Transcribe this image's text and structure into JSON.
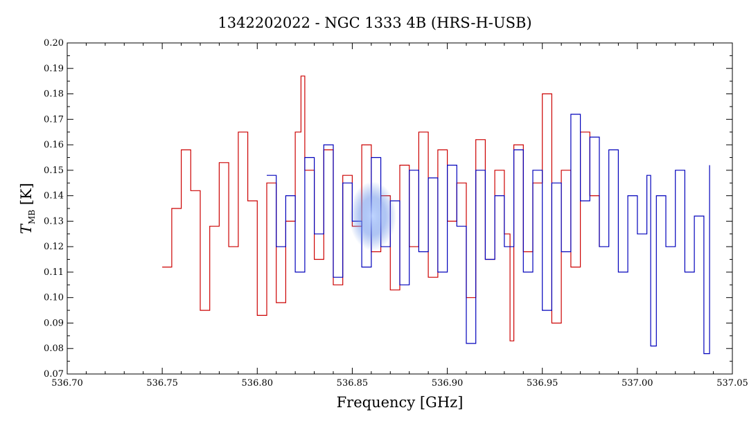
{
  "chart_data": {
    "type": "line",
    "title": "1342202022 - NGC 1333 4B (HRS-H-USB)",
    "xlabel": "Frequency [GHz]",
    "ylabel": "T",
    "ylabel_sub": "MB",
    "ylabel_unit": " [K]",
    "xlim": [
      536.7,
      537.05
    ],
    "ylim": [
      0.07,
      0.2
    ],
    "x_ticks": [
      536.7,
      536.75,
      536.8,
      536.85,
      536.9,
      536.95,
      537.0,
      537.05
    ],
    "x_tick_labels": [
      "536.70",
      "536.75",
      "536.80",
      "536.85",
      "536.90",
      "536.95",
      "537.00",
      "537.05"
    ],
    "y_ticks": [
      0.07,
      0.08,
      0.09,
      0.1,
      0.11,
      0.12,
      0.13,
      0.14,
      0.15,
      0.16,
      0.17,
      0.18,
      0.19,
      0.2
    ],
    "y_tick_labels": [
      "0.07",
      "0.08",
      "0.09",
      "0.10",
      "0.11",
      "0.12",
      "0.13",
      "0.14",
      "0.15",
      "0.16",
      "0.17",
      "0.18",
      "0.19",
      "0.20"
    ],
    "grid": false,
    "legend": "none",
    "series": [
      {
        "color": "#cc0000",
        "style": "steps",
        "x": [
          536.75,
          536.755,
          536.76,
          536.765,
          536.77,
          536.775,
          536.78,
          536.785,
          536.79,
          536.795,
          536.8,
          536.805,
          536.81,
          536.815,
          536.82,
          536.823,
          536.825,
          536.83,
          536.835,
          536.84,
          536.845,
          536.85,
          536.855,
          536.86,
          536.865,
          536.87,
          536.875,
          536.88,
          536.885,
          536.89,
          536.895,
          536.9,
          536.905,
          536.91,
          536.915,
          536.92,
          536.925,
          536.93,
          536.933,
          536.935,
          536.94,
          536.945,
          536.95,
          536.955,
          536.96,
          536.965,
          536.97,
          536.975,
          536.98
        ],
        "y": [
          0.112,
          0.135,
          0.158,
          0.142,
          0.095,
          0.128,
          0.153,
          0.12,
          0.165,
          0.138,
          0.093,
          0.145,
          0.098,
          0.13,
          0.165,
          0.187,
          0.15,
          0.115,
          0.158,
          0.105,
          0.148,
          0.128,
          0.16,
          0.118,
          0.14,
          0.103,
          0.152,
          0.12,
          0.165,
          0.108,
          0.158,
          0.13,
          0.145,
          0.1,
          0.162,
          0.115,
          0.15,
          0.125,
          0.083,
          0.16,
          0.118,
          0.145,
          0.18,
          0.09,
          0.15,
          0.112,
          0.165,
          0.14,
          0.12
        ]
      },
      {
        "color": "#0000bb",
        "style": "steps",
        "x": [
          536.805,
          536.81,
          536.815,
          536.82,
          536.825,
          536.83,
          536.835,
          536.84,
          536.845,
          536.85,
          536.855,
          536.86,
          536.865,
          536.87,
          536.875,
          536.88,
          536.885,
          536.89,
          536.895,
          536.9,
          536.905,
          536.91,
          536.915,
          536.92,
          536.925,
          536.93,
          536.935,
          536.94,
          536.945,
          536.95,
          536.955,
          536.96,
          536.965,
          536.97,
          536.975,
          536.98,
          536.985,
          536.99,
          536.995,
          537.0,
          537.005,
          537.007,
          537.01,
          537.015,
          537.02,
          537.025,
          537.03,
          537.035,
          537.038
        ],
        "y": [
          0.148,
          0.12,
          0.14,
          0.11,
          0.155,
          0.125,
          0.16,
          0.108,
          0.145,
          0.13,
          0.112,
          0.155,
          0.12,
          0.138,
          0.105,
          0.15,
          0.118,
          0.147,
          0.11,
          0.152,
          0.128,
          0.082,
          0.15,
          0.115,
          0.14,
          0.12,
          0.158,
          0.11,
          0.15,
          0.095,
          0.145,
          0.118,
          0.172,
          0.138,
          0.163,
          0.12,
          0.158,
          0.11,
          0.14,
          0.125,
          0.148,
          0.081,
          0.14,
          0.12,
          0.15,
          0.11,
          0.132,
          0.078,
          0.152
        ]
      }
    ]
  },
  "decoration": {
    "glow_color": "#4f7fe0"
  }
}
